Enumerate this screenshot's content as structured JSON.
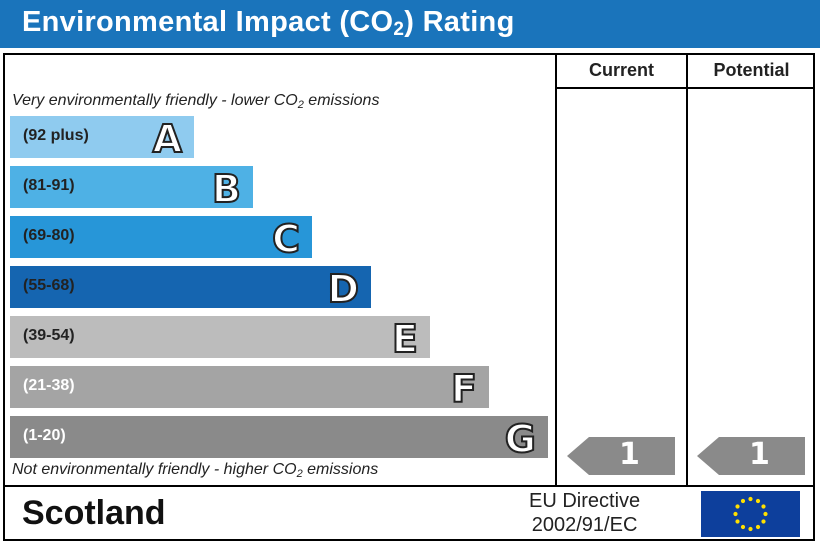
{
  "title": {
    "main": "Environmental Impact (CO",
    "sub": "2",
    "suffix": ") Rating"
  },
  "columns": {
    "current": "Current",
    "potential": "Potential"
  },
  "captions": {
    "top": {
      "before": "Very environmentally friendly - lower CO",
      "sub": "2",
      "after": " emissions"
    },
    "bottom": {
      "before": "Not environmentally friendly - higher CO",
      "sub": "2",
      "after": " emissions"
    }
  },
  "bands": [
    {
      "range": "(92 plus)",
      "letter": "A",
      "color": "#8fcbef",
      "text_color": "#222222"
    },
    {
      "range": "(81-91)",
      "letter": "B",
      "color": "#4eb1e5",
      "text_color": "#222222"
    },
    {
      "range": "(69-80)",
      "letter": "C",
      "color": "#2796d8",
      "text_color": "#222222"
    },
    {
      "range": "(55-68)",
      "letter": "D",
      "color": "#1565b0",
      "text_color": "#222222"
    },
    {
      "range": "(39-54)",
      "letter": "E",
      "color": "#bcbcbc",
      "text_color": "#222222"
    },
    {
      "range": "(21-38)",
      "letter": "F",
      "color": "#a4a4a4",
      "text_color": "#ffffff"
    },
    {
      "range": "(1-20)",
      "letter": "G",
      "color": "#8a8a8a",
      "text_color": "#ffffff"
    }
  ],
  "ratings": {
    "current": "1",
    "potential": "1",
    "arrow_color": "#8a8a8a"
  },
  "footer": {
    "region": "Scotland",
    "directive_line1": "EU Directive",
    "directive_line2": "2002/91/EC"
  },
  "flag": {
    "blue": "#0d3f9c",
    "star": "#ffe000"
  }
}
